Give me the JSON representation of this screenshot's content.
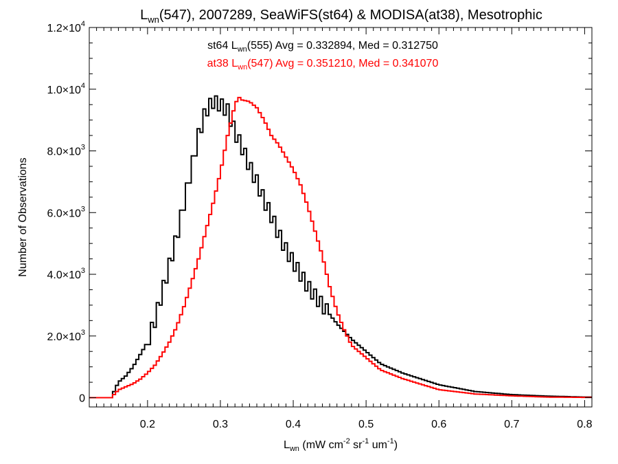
{
  "chart_data": {
    "type": "histogram",
    "title": {
      "main": "L",
      "sub": "wn",
      "rest": "(547), 2007289, SeaWiFS(st64) & MODISA(at38), Mesotrophic"
    },
    "xlabel": {
      "main": "L",
      "sub": "wn",
      "rest": " (mW cm",
      "sup1": "-2",
      "mid": " sr",
      "sup2": "-1",
      "mid2": " um",
      "sup3": "-1",
      "end": ")"
    },
    "ylabel": "Number of Observations",
    "xlim": [
      0.12,
      0.81
    ],
    "ylim": [
      -300,
      12000
    ],
    "xticks": [
      {
        "v": 0.2,
        "label": "0.2"
      },
      {
        "v": 0.3,
        "label": "0.3"
      },
      {
        "v": 0.4,
        "label": "0.4"
      },
      {
        "v": 0.5,
        "label": "0.5"
      },
      {
        "v": 0.6,
        "label": "0.6"
      },
      {
        "v": 0.7,
        "label": "0.7"
      },
      {
        "v": 0.8,
        "label": "0.8"
      }
    ],
    "yticks": [
      {
        "v": 0,
        "mant": "0",
        "exp": ""
      },
      {
        "v": 2000,
        "mant": "2.0×10",
        "exp": "3"
      },
      {
        "v": 4000,
        "mant": "4.0×10",
        "exp": "3"
      },
      {
        "v": 6000,
        "mant": "6.0×10",
        "exp": "3"
      },
      {
        "v": 8000,
        "mant": "8.0×10",
        "exp": "3"
      },
      {
        "v": 10000,
        "mant": "1.0×10",
        "exp": "4"
      },
      {
        "v": 12000,
        "mant": "1.2×10",
        "exp": "4"
      }
    ],
    "annotations": [
      {
        "color": "#000000",
        "pre": "st64 L",
        "sub": "wn",
        "post": "(555) Avg = 0.332894, Med = 0.312750"
      },
      {
        "color": "#ff0000",
        "pre": "at38 L",
        "sub": "wn",
        "post": "(547) Avg = 0.351210, Med = 0.341070"
      }
    ],
    "series": [
      {
        "color": "#000000",
        "x": [
          0.12,
          0.15,
          0.16,
          0.17,
          0.18,
          0.19,
          0.2,
          0.21,
          0.22,
          0.23,
          0.24,
          0.25,
          0.26,
          0.27,
          0.28,
          0.29,
          0.3,
          0.31,
          0.32,
          0.33,
          0.34,
          0.35,
          0.36,
          0.37,
          0.38,
          0.39,
          0.4,
          0.42,
          0.44,
          0.46,
          0.48,
          0.5,
          0.52,
          0.55,
          0.6,
          0.65,
          0.7,
          0.75,
          0.8,
          0.81
        ],
        "y": [
          0,
          0,
          500,
          700,
          1000,
          1400,
          1800,
          2500,
          3400,
          4300,
          5200,
          6300,
          7400,
          8500,
          9300,
          9600,
          9500,
          9300,
          8600,
          8100,
          7500,
          7000,
          6400,
          5900,
          5300,
          4800,
          4400,
          3600,
          3000,
          2400,
          1900,
          1500,
          1100,
          800,
          420,
          200,
          100,
          50,
          20,
          20
        ]
      },
      {
        "color": "#ff0000",
        "x": [
          0.12,
          0.15,
          0.16,
          0.17,
          0.18,
          0.19,
          0.2,
          0.21,
          0.22,
          0.23,
          0.24,
          0.25,
          0.26,
          0.27,
          0.28,
          0.29,
          0.3,
          0.31,
          0.32,
          0.325,
          0.33,
          0.34,
          0.35,
          0.36,
          0.37,
          0.38,
          0.39,
          0.4,
          0.41,
          0.42,
          0.43,
          0.44,
          0.45,
          0.46,
          0.47,
          0.48,
          0.5,
          0.52,
          0.55,
          0.6,
          0.65,
          0.7,
          0.75,
          0.8,
          0.81
        ],
        "y": [
          0,
          0,
          250,
          350,
          450,
          600,
          800,
          1050,
          1400,
          1800,
          2300,
          2950,
          3700,
          4500,
          5400,
          6300,
          7300,
          8500,
          9500,
          9750,
          9650,
          9600,
          9400,
          9000,
          8500,
          8200,
          7800,
          7400,
          6900,
          6200,
          5400,
          4600,
          3600,
          2800,
          2200,
          1700,
          1300,
          900,
          620,
          260,
          120,
          60,
          20,
          10,
          10
        ]
      }
    ]
  }
}
